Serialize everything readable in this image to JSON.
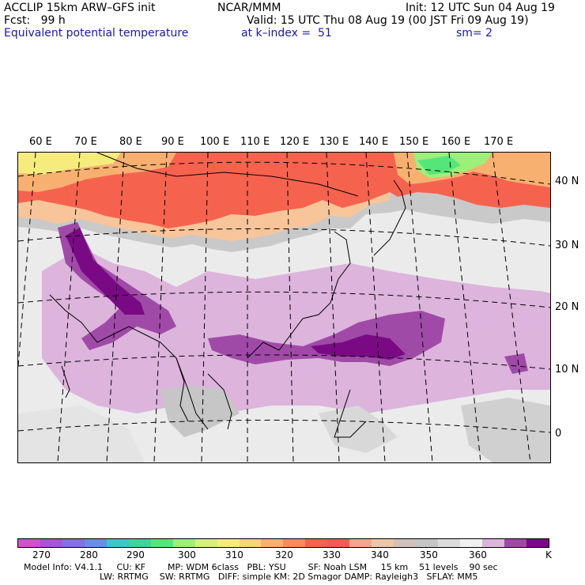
{
  "header": {
    "model": "ACCLIP 15km ARW–GFS init",
    "org": "NCAR/MMM",
    "init": "Init: 12 UTC Sun 04 Aug 19",
    "fcst": "Fcst:   99 h",
    "valid": "Valid: 15 UTC Thu 08 Aug 19 (00 JST Fri 09 Aug 19)",
    "field": "Equivalent potential temperature",
    "level": "at k–index =  51",
    "smooth": "sm= 2"
  },
  "longitudes": [
    "60 E",
    "70 E",
    "80 E",
    "90 E",
    "100 E",
    "110 E",
    "120 E",
    "130 E",
    "140 E",
    "150 E",
    "160 E",
    "170 E"
  ],
  "latitudes": [
    "40 N",
    "30 N",
    "20 N",
    "10 N",
    "0"
  ],
  "colorbar": {
    "colors": [
      "#cc55cc",
      "#a855d6",
      "#8470e0",
      "#6a8ee6",
      "#3ac8c8",
      "#3cd69a",
      "#55e67a",
      "#9cf07a",
      "#d6f07e",
      "#f6ec7e",
      "#f8d47a",
      "#f8b070",
      "#fa8a5c",
      "#f5634e",
      "#f55a52",
      "#f4a68c",
      "#efc6aa",
      "#d0c2b8",
      "#c6c6c6",
      "#dcdcdc",
      "#f1f1f1",
      "#dcb4dc",
      "#a04aa8",
      "#7a0a84"
    ],
    "ticks": [
      "270",
      "280",
      "290",
      "300",
      "310",
      "320",
      "330",
      "340",
      "350",
      "360"
    ],
    "unit": "K"
  },
  "footer": {
    "line1": "Model Info: V4.1.1     CU: KF        MP: WDM 6class   PBL: YSU        SF: Noah LSM     15 km    51 levels    90 sec",
    "line2": "LW: RRTMG    SW: RRTMG   DIFF: simple KM: 2D Smagor DAMP: Rayleigh3   SFLAY: MM5"
  }
}
